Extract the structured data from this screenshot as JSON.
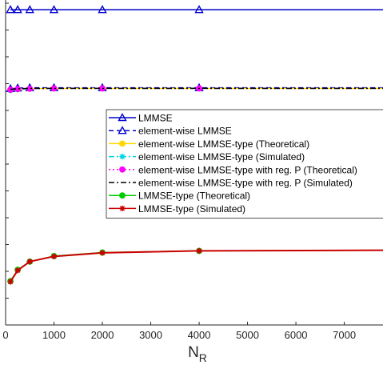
{
  "chart_data": {
    "type": "line",
    "xlabel": "N",
    "xlabel_sub": "R",
    "xlim": [
      0,
      7800
    ],
    "xticks": [
      0,
      1000,
      2000,
      3000,
      4000,
      5000,
      6000,
      7000
    ],
    "ylim": [
      0,
      1
    ],
    "grid": false,
    "legend_position": "center-right",
    "x": [
      100,
      250,
      500,
      1000,
      2000,
      4000,
      7800
    ],
    "series": [
      {
        "name": "LMMSE",
        "color": "#0000cc",
        "line": "solid",
        "marker": "triangle",
        "values": [
          0.97,
          0.97,
          0.97,
          0.97,
          0.97,
          0.97,
          0.97
        ]
      },
      {
        "name": "element-wise LMMSE",
        "color": "#0000cc",
        "line": "dashed",
        "marker": "triangle",
        "values": [
          0.727,
          0.729,
          0.73,
          0.73,
          0.73,
          0.73,
          0.73
        ]
      },
      {
        "name": "element-wise LMMSE-type (Theoretical)",
        "color": "#ffd700",
        "line": "solid",
        "marker": "circle",
        "values": [
          0.723,
          0.725,
          0.727,
          0.728,
          0.728,
          0.728,
          0.728
        ]
      },
      {
        "name": "element-wise LMMSE-type (Simulated)",
        "color": "#00d5e0",
        "line": "dashdot",
        "marker": "asterisk",
        "values": [
          0.722,
          0.725,
          0.727,
          0.728,
          0.728,
          0.728,
          0.728
        ]
      },
      {
        "name": "element-wise LMMSE-type with reg. P (Theoretical)",
        "color": "#ff00ff",
        "line": "dotted",
        "marker": "circle",
        "values": [
          0.724,
          0.726,
          0.727,
          0.728,
          0.728,
          0.728,
          0.728
        ]
      },
      {
        "name": "element-wise LMMSE-type with reg. P (Simulated)",
        "color": "#000000",
        "line": "dashdot",
        "marker": "none",
        "values": [
          0.725,
          0.727,
          0.728,
          0.728,
          0.728,
          0.728,
          0.728
        ]
      },
      {
        "name": "LMMSE-type (Theoretical)",
        "color": "#00cc00",
        "line": "solid",
        "marker": "circle",
        "values": [
          0.135,
          0.17,
          0.195,
          0.212,
          0.223,
          0.228,
          0.23
        ]
      },
      {
        "name": "LMMSE-type (Simulated)",
        "color": "#cc0000",
        "line": "solid",
        "marker": "asterisk",
        "values": [
          0.133,
          0.168,
          0.195,
          0.211,
          0.222,
          0.228,
          0.23
        ]
      }
    ]
  }
}
